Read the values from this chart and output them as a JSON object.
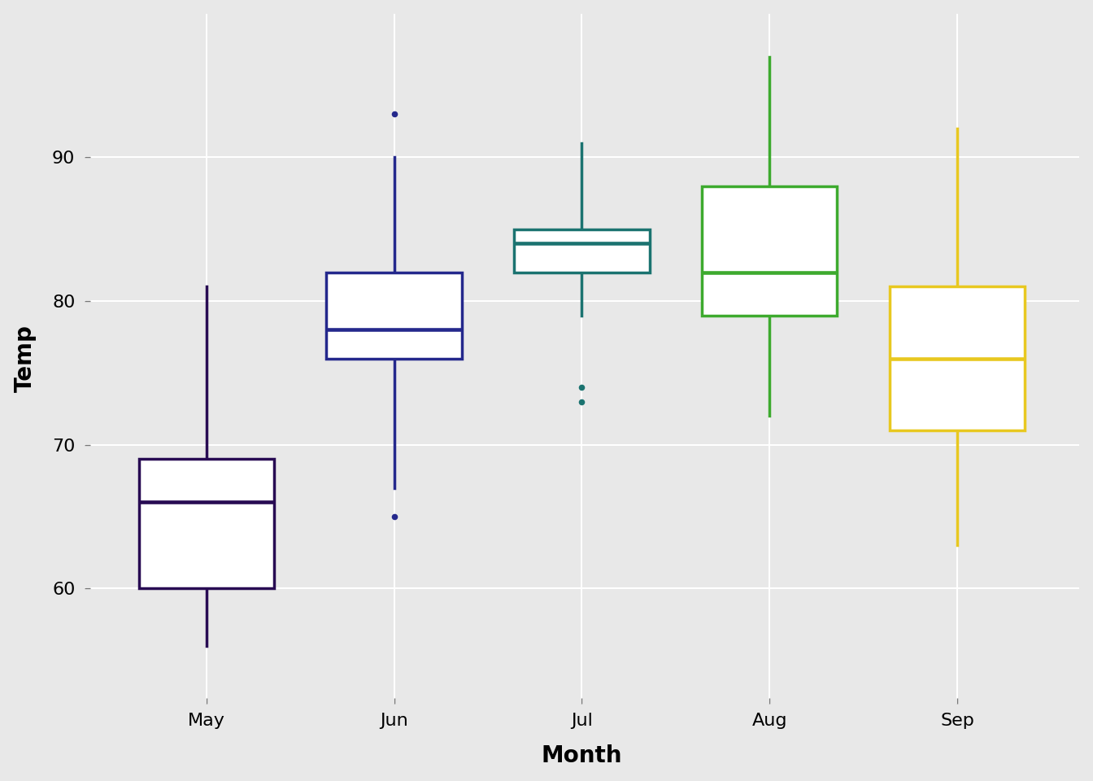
{
  "title": "",
  "xlabel": "Month",
  "ylabel": "Temp",
  "background_color": "#E8E8E8",
  "grid_color": "#FFFFFF",
  "months": [
    "May",
    "Jun",
    "Jul",
    "Aug",
    "Sep"
  ],
  "colors": [
    "#280B53",
    "#24288C",
    "#1B7370",
    "#3DAA2E",
    "#E8C820"
  ],
  "box_data": {
    "May": {
      "whisker_low": 56,
      "q1": 60,
      "median": 66,
      "q3": 69,
      "whisker_high": 81,
      "outliers": []
    },
    "Jun": {
      "whisker_low": 67,
      "q1": 76,
      "median": 78,
      "q3": 82,
      "whisker_high": 90,
      "outliers": [
        65,
        93
      ]
    },
    "Jul": {
      "whisker_low": 79,
      "q1": 82,
      "median": 84,
      "q3": 85,
      "whisker_high": 91,
      "outliers": [
        74,
        73
      ]
    },
    "Aug": {
      "whisker_low": 72,
      "q1": 79,
      "median": 82,
      "q3": 88,
      "whisker_high": 97,
      "outliers": []
    },
    "Sep": {
      "whisker_low": 63,
      "q1": 71,
      "median": 76,
      "q3": 81,
      "whisker_high": 92,
      "outliers": []
    }
  },
  "ylim": [
    52,
    100
  ],
  "yticks": [
    60,
    70,
    80,
    90
  ],
  "box_width": 0.72,
  "linewidth": 2.5,
  "xlabel_fontsize": 20,
  "ylabel_fontsize": 20,
  "tick_fontsize": 16
}
